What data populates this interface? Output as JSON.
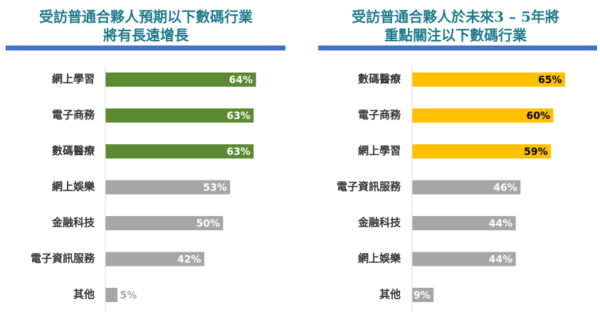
{
  "colors": {
    "title": "#1f7a8c",
    "rule": "#4472c4",
    "green": "#5b8a32",
    "yellow": "#ffc000",
    "gray": "#a6a6a6",
    "axis": "#d9d9d9",
    "label_light": "#ffffff",
    "label_dark": "#000000"
  },
  "chart_data": [
    {
      "type": "bar",
      "orientation": "horizontal",
      "title_lines": [
        "受訪普通合夥人預期以下數碼行業",
        "將有長遠增長"
      ],
      "categories": [
        "網上學習",
        "電子商務",
        "數碼醫療",
        "網上娛樂",
        "金融科技",
        "電子資訊服務",
        "其他"
      ],
      "values": [
        64,
        63,
        63,
        53,
        50,
        42,
        5
      ],
      "labels": [
        "64%",
        "63%",
        "63%",
        "53%",
        "50%",
        "42%",
        "5%"
      ],
      "highlight_count": 3,
      "highlight_color": "#5b8a32",
      "xlim": [
        0,
        100
      ],
      "grid": false,
      "legend": "none"
    },
    {
      "type": "bar",
      "orientation": "horizontal",
      "title_lines": [
        "受訪普通合夥人於未來3 – 5年將",
        "重點關注以下數碼行業"
      ],
      "categories": [
        "數碼醫療",
        "電子商務",
        "網上學習",
        "電子資訊服務",
        "金融科技",
        "網上娛樂",
        "其他"
      ],
      "values": [
        65,
        60,
        59,
        46,
        44,
        44,
        9
      ],
      "labels": [
        "65%",
        "60%",
        "59%",
        "46%",
        "44%",
        "44%",
        "9%"
      ],
      "highlight_count": 3,
      "highlight_color": "#ffc000",
      "xlim": [
        0,
        100
      ],
      "grid": false,
      "legend": "none"
    }
  ]
}
